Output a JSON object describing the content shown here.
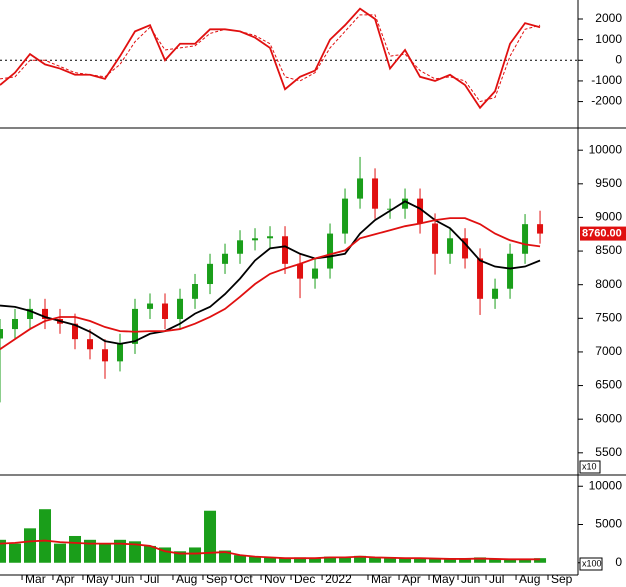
{
  "chart_data": [
    {
      "type": "line",
      "zero_line": true,
      "x": [
        0,
        1,
        2,
        3,
        4,
        5,
        6,
        7,
        8,
        9,
        10,
        11,
        12,
        13,
        14,
        15,
        16,
        17,
        18,
        19,
        20,
        21,
        22,
        23,
        24,
        25,
        26,
        27,
        28,
        29,
        30,
        31,
        32,
        33,
        34,
        35,
        36
      ],
      "series": [
        {
          "color": "#e01010",
          "dash": false,
          "values": [
            -1200,
            -600,
            300,
            -200,
            -400,
            -700,
            -700,
            -900,
            200,
            1400,
            1700,
            0,
            800,
            800,
            1500,
            1500,
            1400,
            1100,
            600,
            -1400,
            -800,
            -500,
            1000,
            1700,
            2500,
            2000,
            -400,
            500,
            -800,
            -1000,
            -700,
            -1200,
            -2300,
            -1500,
            800,
            1800,
            1600
          ]
        },
        {
          "color": "#e01010",
          "dash": true,
          "values": [
            -900,
            -800,
            0,
            0,
            -300,
            -600,
            -700,
            -800,
            -200,
            900,
            1600,
            500,
            600,
            700,
            1300,
            1500,
            1400,
            1200,
            800,
            -800,
            -1000,
            -600,
            600,
            1400,
            2200,
            2200,
            200,
            300,
            -500,
            -900,
            -800,
            -1000,
            -2000,
            -1800,
            200,
            1500,
            1700
          ]
        }
      ],
      "ylim": [
        -3280,
        2920
      ],
      "yticks": [
        -2000,
        -1000,
        0,
        1000,
        2000
      ]
    },
    {
      "type": "candlestick",
      "up_color": "#1a9e1a",
      "down_color": "#e01010",
      "x": [
        0,
        1,
        2,
        3,
        4,
        5,
        6,
        7,
        8,
        9,
        10,
        11,
        12,
        13,
        14,
        15,
        16,
        17,
        18,
        19,
        20,
        21,
        22,
        23,
        24,
        25,
        26,
        27,
        28,
        29,
        30,
        31,
        32,
        33,
        34,
        35,
        36
      ],
      "open": [
        7200,
        7340,
        7490,
        7640,
        7490,
        7420,
        7190,
        7040,
        6860,
        7120,
        7640,
        7720,
        7490,
        7790,
        8010,
        8310,
        8460,
        8660,
        8690,
        8720,
        8310,
        8090,
        8240,
        8760,
        9280,
        9580,
        9130,
        9130,
        9280,
        8910,
        8460,
        8690,
        8390,
        7790,
        7940,
        8460,
        8900
      ],
      "high": [
        7490,
        7640,
        7790,
        7790,
        7640,
        7570,
        7340,
        7190,
        7270,
        7790,
        7870,
        7870,
        7940,
        8160,
        8460,
        8610,
        8810,
        8840,
        8870,
        8870,
        8460,
        8390,
        8910,
        9430,
        9900,
        9730,
        9280,
        9430,
        9430,
        9060,
        8840,
        8840,
        8540,
        8090,
        8610,
        9050,
        9100
      ],
      "low": [
        6250,
        7190,
        7340,
        7340,
        7270,
        7040,
        6890,
        6600,
        6710,
        6970,
        7490,
        7340,
        7340,
        7640,
        7860,
        8160,
        8310,
        8510,
        8540,
        8160,
        7800,
        7940,
        8090,
        8610,
        9130,
        8980,
        8980,
        8980,
        8760,
        8150,
        8310,
        8240,
        7550,
        7640,
        7790,
        8310,
        8610
      ],
      "close": [
        7340,
        7490,
        7640,
        7490,
        7420,
        7190,
        7040,
        6860,
        7120,
        7640,
        7720,
        7490,
        7790,
        8010,
        8310,
        8460,
        8660,
        8690,
        8720,
        8310,
        8090,
        8240,
        8760,
        9280,
        9580,
        9130,
        9130,
        9280,
        8910,
        8460,
        8690,
        8390,
        7790,
        7940,
        8460,
        8900,
        8760
      ],
      "series": [
        {
          "color": "#000000",
          "values": [
            7690,
            7670,
            7610,
            7520,
            7460,
            7400,
            7300,
            7160,
            7120,
            7160,
            7270,
            7310,
            7420,
            7570,
            7670,
            7860,
            8090,
            8360,
            8540,
            8570,
            8460,
            8390,
            8420,
            8460,
            8760,
            8960,
            9100,
            9240,
            9130,
            8960,
            8840,
            8610,
            8360,
            8270,
            8240,
            8270,
            8360
          ]
        },
        {
          "color": "#e01010",
          "values": [
            7040,
            7190,
            7340,
            7460,
            7520,
            7520,
            7460,
            7370,
            7310,
            7300,
            7310,
            7310,
            7340,
            7420,
            7520,
            7640,
            7820,
            8010,
            8160,
            8240,
            8310,
            8390,
            8450,
            8510,
            8690,
            8750,
            8810,
            8870,
            8910,
            8960,
            8990,
            8990,
            8900,
            8760,
            8660,
            8600,
            8570
          ]
        }
      ],
      "last_price": {
        "value": 8760,
        "label": "8760.00"
      },
      "y_unit_label": "x10",
      "ylim": [
        5170,
        10330
      ],
      "yticks": [
        5500,
        6000,
        6500,
        7000,
        7500,
        8000,
        8500,
        9000,
        9500,
        10000
      ]
    },
    {
      "type": "bar",
      "color": "#1a9e1a",
      "x": [
        0,
        1,
        2,
        3,
        4,
        5,
        6,
        7,
        8,
        9,
        10,
        11,
        12,
        13,
        14,
        15,
        16,
        17,
        18,
        19,
        20,
        21,
        22,
        23,
        24,
        25,
        26,
        27,
        28,
        29,
        30,
        31,
        32,
        33,
        34,
        35,
        36
      ],
      "values": [
        3000,
        2500,
        4500,
        7000,
        2500,
        3500,
        3000,
        2500,
        3000,
        2800,
        2200,
        2000,
        1500,
        2000,
        6800,
        1600,
        1000,
        800,
        700,
        600,
        700,
        600,
        800,
        700,
        900,
        700,
        600,
        600,
        500,
        600,
        500,
        600,
        700,
        500,
        400,
        500,
        600
      ],
      "series": [
        {
          "color": "#e01010",
          "values": [
            2500,
            2600,
            2800,
            2900,
            2700,
            2600,
            2500,
            2500,
            2500,
            2400,
            2200,
            1500,
            1200,
            1200,
            1300,
            1400,
            1000,
            800,
            700,
            600,
            600,
            600,
            700,
            700,
            800,
            700,
            650,
            600,
            600,
            550,
            500,
            500,
            550,
            500,
            450,
            450,
            450
          ]
        }
      ],
      "y_unit_label": "x100",
      "ylim": [
        -1600,
        11470
      ],
      "yticks": [
        0,
        5000,
        10000
      ],
      "xlim": [
        0,
        38.53
      ],
      "xticks": [
        {
          "value": 1.47,
          "label": "Mar"
        },
        {
          "value": 3.53,
          "label": "Apr"
        },
        {
          "value": 5.53,
          "label": "May"
        },
        {
          "value": 7.47,
          "label": "Jun"
        },
        {
          "value": 9.4,
          "label": "Jul"
        },
        {
          "value": 11.53,
          "label": "Aug"
        },
        {
          "value": 13.53,
          "label": "Sep"
        },
        {
          "value": 15.4,
          "label": "Oct"
        },
        {
          "value": 17.4,
          "label": "Nov"
        },
        {
          "value": 19.4,
          "label": "Dec"
        },
        {
          "value": 21.47,
          "label": "2022"
        },
        {
          "value": 24.53,
          "label": "Mar"
        },
        {
          "value": 26.6,
          "label": "Apr"
        },
        {
          "value": 28.6,
          "label": "May"
        },
        {
          "value": 30.53,
          "label": "Jun"
        },
        {
          "value": 32.4,
          "label": "Jul"
        },
        {
          "value": 34.4,
          "label": "Aug"
        },
        {
          "value": 36.53,
          "label": "Sep"
        }
      ]
    }
  ]
}
